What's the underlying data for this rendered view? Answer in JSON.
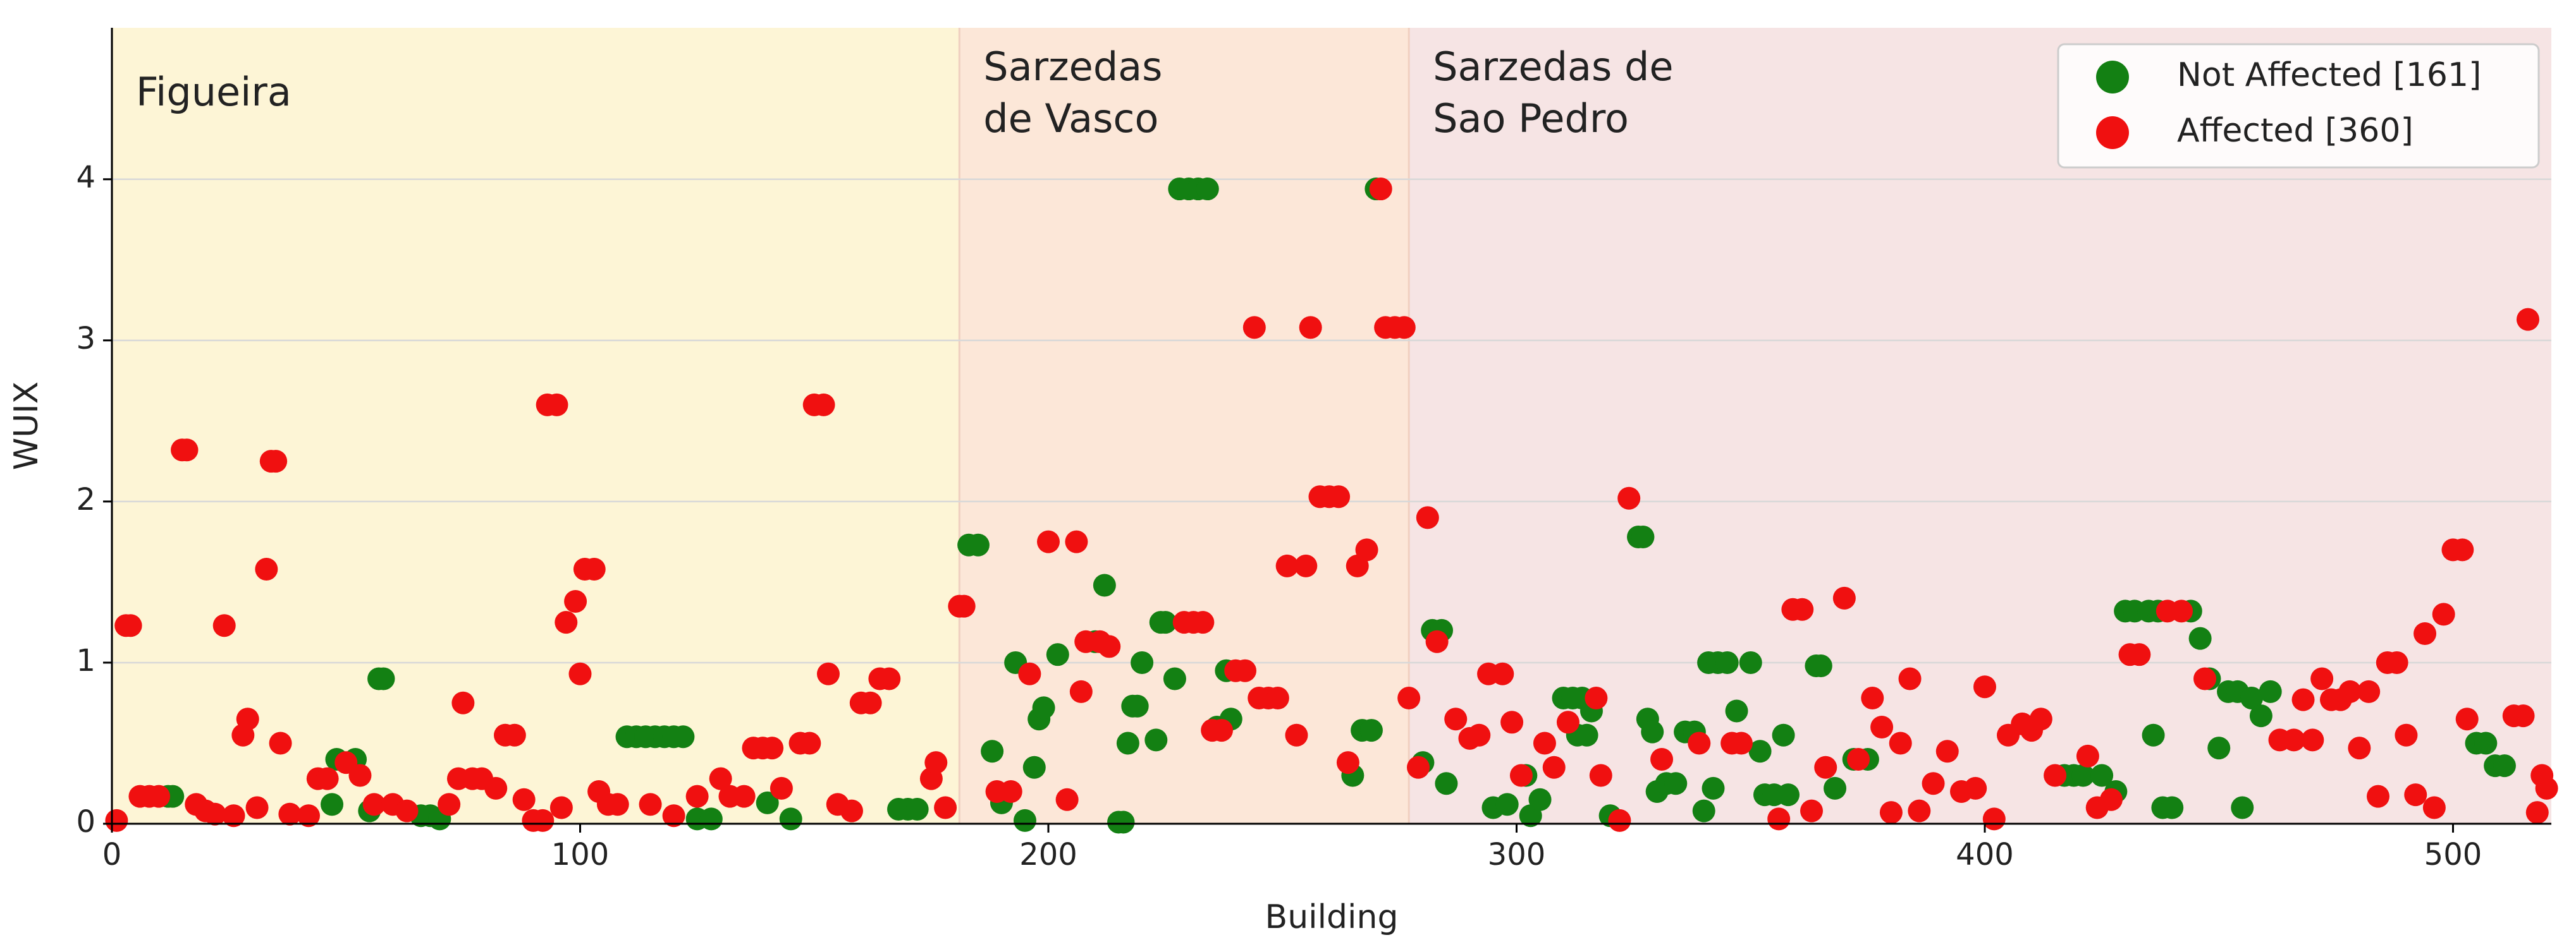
{
  "chart_data": {
    "type": "scatter",
    "xlabel": "Building",
    "ylabel": "WUIX",
    "xlim": [
      0,
      521
    ],
    "ylim": [
      0,
      4.94
    ],
    "xticks": [
      0,
      100,
      200,
      300,
      400,
      500
    ],
    "yticks": [
      0,
      1,
      2,
      3,
      4
    ],
    "grid": true,
    "legend": "upper right",
    "regions": [
      {
        "label": [
          "Figueira"
        ],
        "start": 0,
        "end": 181,
        "color": "#fdf5d6"
      },
      {
        "label": [
          "Sarzedas",
          "de Vasco"
        ],
        "start": 181,
        "end": 277,
        "color": "#fce7d8"
      },
      {
        "label": [
          "Sarzedas de",
          "Sao Pedro"
        ],
        "start": 277,
        "end": 521,
        "color": "#f6e4e4"
      }
    ],
    "series": [
      {
        "name": "Not Affected [161]",
        "color": "#138013",
        "x": [
          12,
          13,
          57,
          58,
          48,
          47,
          52,
          55,
          66,
          68,
          70,
          110,
          112,
          114,
          116,
          118,
          120,
          122,
          125,
          128,
          145,
          140,
          168,
          170,
          172,
          183,
          185,
          188,
          190,
          193,
          195,
          197,
          198,
          199,
          202,
          210,
          212,
          215,
          216,
          217,
          218,
          219,
          220,
          223,
          224,
          225,
          227,
          228,
          230,
          232,
          234,
          236,
          238,
          239,
          265,
          267,
          269,
          270,
          280,
          282,
          284,
          285,
          295,
          298,
          302,
          303,
          305,
          310,
          312,
          314,
          313,
          315,
          316,
          320,
          326,
          327,
          328,
          329,
          330,
          332,
          334,
          336,
          338,
          340,
          342,
          341,
          343,
          345,
          347,
          350,
          352,
          353,
          355,
          357,
          358,
          364,
          365,
          368,
          372,
          375,
          417,
          419,
          421,
          425,
          428,
          430,
          432,
          435,
          437,
          436,
          438,
          440,
          444,
          446,
          448,
          450,
          452,
          454,
          455,
          457,
          459,
          461,
          505,
          507,
          509,
          511
        ],
        "values": [
          0.17,
          0.17,
          0.9,
          0.9,
          0.4,
          0.12,
          0.4,
          0.08,
          0.05,
          0.05,
          0.03,
          0.54,
          0.54,
          0.54,
          0.54,
          0.54,
          0.54,
          0.54,
          0.03,
          0.03,
          0.03,
          0.13,
          0.09,
          0.09,
          0.09,
          1.73,
          1.73,
          0.45,
          0.13,
          1.0,
          0.02,
          0.35,
          0.65,
          0.72,
          1.05,
          1.13,
          1.48,
          0.01,
          0.01,
          0.5,
          0.73,
          0.73,
          1.0,
          0.52,
          1.25,
          1.25,
          0.9,
          3.94,
          3.94,
          3.94,
          3.94,
          0.6,
          0.95,
          0.65,
          0.3,
          0.58,
          0.58,
          3.94,
          0.38,
          1.2,
          1.2,
          0.25,
          0.1,
          0.12,
          0.3,
          0.05,
          0.15,
          0.78,
          0.78,
          0.78,
          0.55,
          0.55,
          0.7,
          0.05,
          1.78,
          1.78,
          0.65,
          0.57,
          0.2,
          0.25,
          0.25,
          0.57,
          0.57,
          0.08,
          0.22,
          1.0,
          1.0,
          1.0,
          0.7,
          1.0,
          0.45,
          0.18,
          0.18,
          0.55,
          0.18,
          0.98,
          0.98,
          0.22,
          0.4,
          0.4,
          0.3,
          0.3,
          0.3,
          0.3,
          0.2,
          1.32,
          1.32,
          1.32,
          1.32,
          0.55,
          0.1,
          0.1,
          1.32,
          1.15,
          0.9,
          0.47,
          0.82,
          0.82,
          0.1,
          0.78,
          0.67,
          0.82,
          0.5,
          0.5,
          0.36,
          0.36
        ]
      },
      {
        "name": "Affected [360]",
        "color": "#f01010",
        "x": [
          1,
          3,
          4,
          6,
          8,
          10,
          15,
          16,
          18,
          20,
          22,
          24,
          26,
          28,
          29,
          31,
          33,
          34,
          35,
          36,
          38,
          42,
          44,
          46,
          50,
          53,
          56,
          60,
          63,
          72,
          74,
          75,
          77,
          79,
          82,
          84,
          86,
          88,
          90,
          92,
          93,
          95,
          96,
          97,
          99,
          100,
          101,
          103,
          104,
          106,
          108,
          115,
          120,
          125,
          130,
          132,
          135,
          137,
          139,
          141,
          143,
          147,
          149,
          150,
          152,
          153,
          155,
          158,
          160,
          162,
          164,
          166,
          175,
          176,
          178,
          181,
          182,
          189,
          192,
          196,
          200,
          204,
          206,
          207,
          208,
          211,
          213,
          229,
          231,
          233,
          235,
          237,
          240,
          242,
          244,
          245,
          247,
          249,
          251,
          253,
          255,
          256,
          258,
          260,
          262,
          264,
          266,
          268,
          271,
          272,
          274,
          276,
          277,
          279,
          281,
          283,
          287,
          290,
          292,
          294,
          297,
          299,
          301,
          306,
          308,
          311,
          317,
          318,
          322,
          324,
          331,
          339,
          346,
          348,
          356,
          359,
          361,
          363,
          366,
          370,
          373,
          376,
          378,
          380,
          382,
          384,
          386,
          389,
          392,
          395,
          398,
          400,
          402,
          405,
          408,
          410,
          412,
          415,
          422,
          424,
          427,
          431,
          433,
          439,
          442,
          447,
          463,
          466,
          468,
          470,
          472,
          474,
          476,
          478,
          480,
          482,
          484,
          486,
          488,
          490,
          492,
          494,
          496,
          498,
          500,
          502,
          503,
          513,
          515,
          516,
          518,
          519,
          520
        ],
        "values": [
          0.02,
          1.23,
          1.23,
          0.17,
          0.17,
          0.17,
          2.32,
          2.32,
          0.12,
          0.08,
          0.06,
          1.23,
          0.05,
          0.55,
          0.65,
          0.1,
          1.58,
          2.25,
          2.25,
          0.5,
          0.06,
          0.05,
          0.28,
          0.28,
          0.38,
          0.3,
          0.12,
          0.12,
          0.08,
          0.12,
          0.28,
          0.75,
          0.28,
          0.28,
          0.22,
          0.55,
          0.55,
          0.15,
          0.02,
          0.02,
          2.6,
          2.6,
          0.1,
          1.25,
          1.38,
          0.93,
          1.58,
          1.58,
          0.2,
          0.12,
          0.12,
          0.12,
          0.05,
          0.17,
          0.28,
          0.17,
          0.17,
          0.47,
          0.47,
          0.47,
          0.22,
          0.5,
          0.5,
          2.6,
          2.6,
          0.93,
          0.12,
          0.08,
          0.75,
          0.75,
          0.9,
          0.9,
          0.28,
          0.38,
          0.1,
          1.35,
          1.35,
          0.2,
          0.2,
          0.93,
          1.75,
          0.15,
          1.75,
          0.82,
          1.13,
          1.13,
          1.1,
          1.25,
          1.25,
          1.25,
          0.58,
          0.58,
          0.95,
          0.95,
          3.08,
          0.78,
          0.78,
          0.78,
          1.6,
          0.55,
          1.6,
          3.08,
          2.03,
          2.03,
          2.03,
          0.38,
          1.6,
          1.7,
          3.94,
          3.08,
          3.08,
          3.08,
          0.78,
          0.35,
          1.9,
          1.13,
          0.65,
          0.53,
          0.55,
          0.93,
          0.93,
          0.63,
          0.3,
          0.5,
          0.35,
          0.63,
          0.78,
          0.3,
          0.02,
          2.02,
          0.4,
          0.5,
          0.5,
          0.5,
          0.03,
          1.33,
          1.33,
          0.08,
          0.35,
          1.4,
          0.4,
          0.78,
          0.6,
          0.07,
          0.5,
          0.9,
          0.08,
          0.25,
          0.45,
          0.2,
          0.22,
          0.85,
          0.03,
          0.55,
          0.62,
          0.58,
          0.65,
          0.3,
          0.42,
          0.1,
          0.15,
          1.05,
          1.05,
          1.32,
          1.32,
          0.9,
          0.52,
          0.52,
          0.77,
          0.52,
          0.9,
          0.77,
          0.77,
          0.82,
          0.47,
          0.82,
          0.17,
          1.0,
          1.0,
          0.55,
          0.18,
          1.18,
          0.1,
          1.3,
          1.7,
          1.7,
          0.65,
          0.67,
          0.67,
          3.13,
          0.07,
          0.3,
          0.22
        ]
      }
    ]
  }
}
